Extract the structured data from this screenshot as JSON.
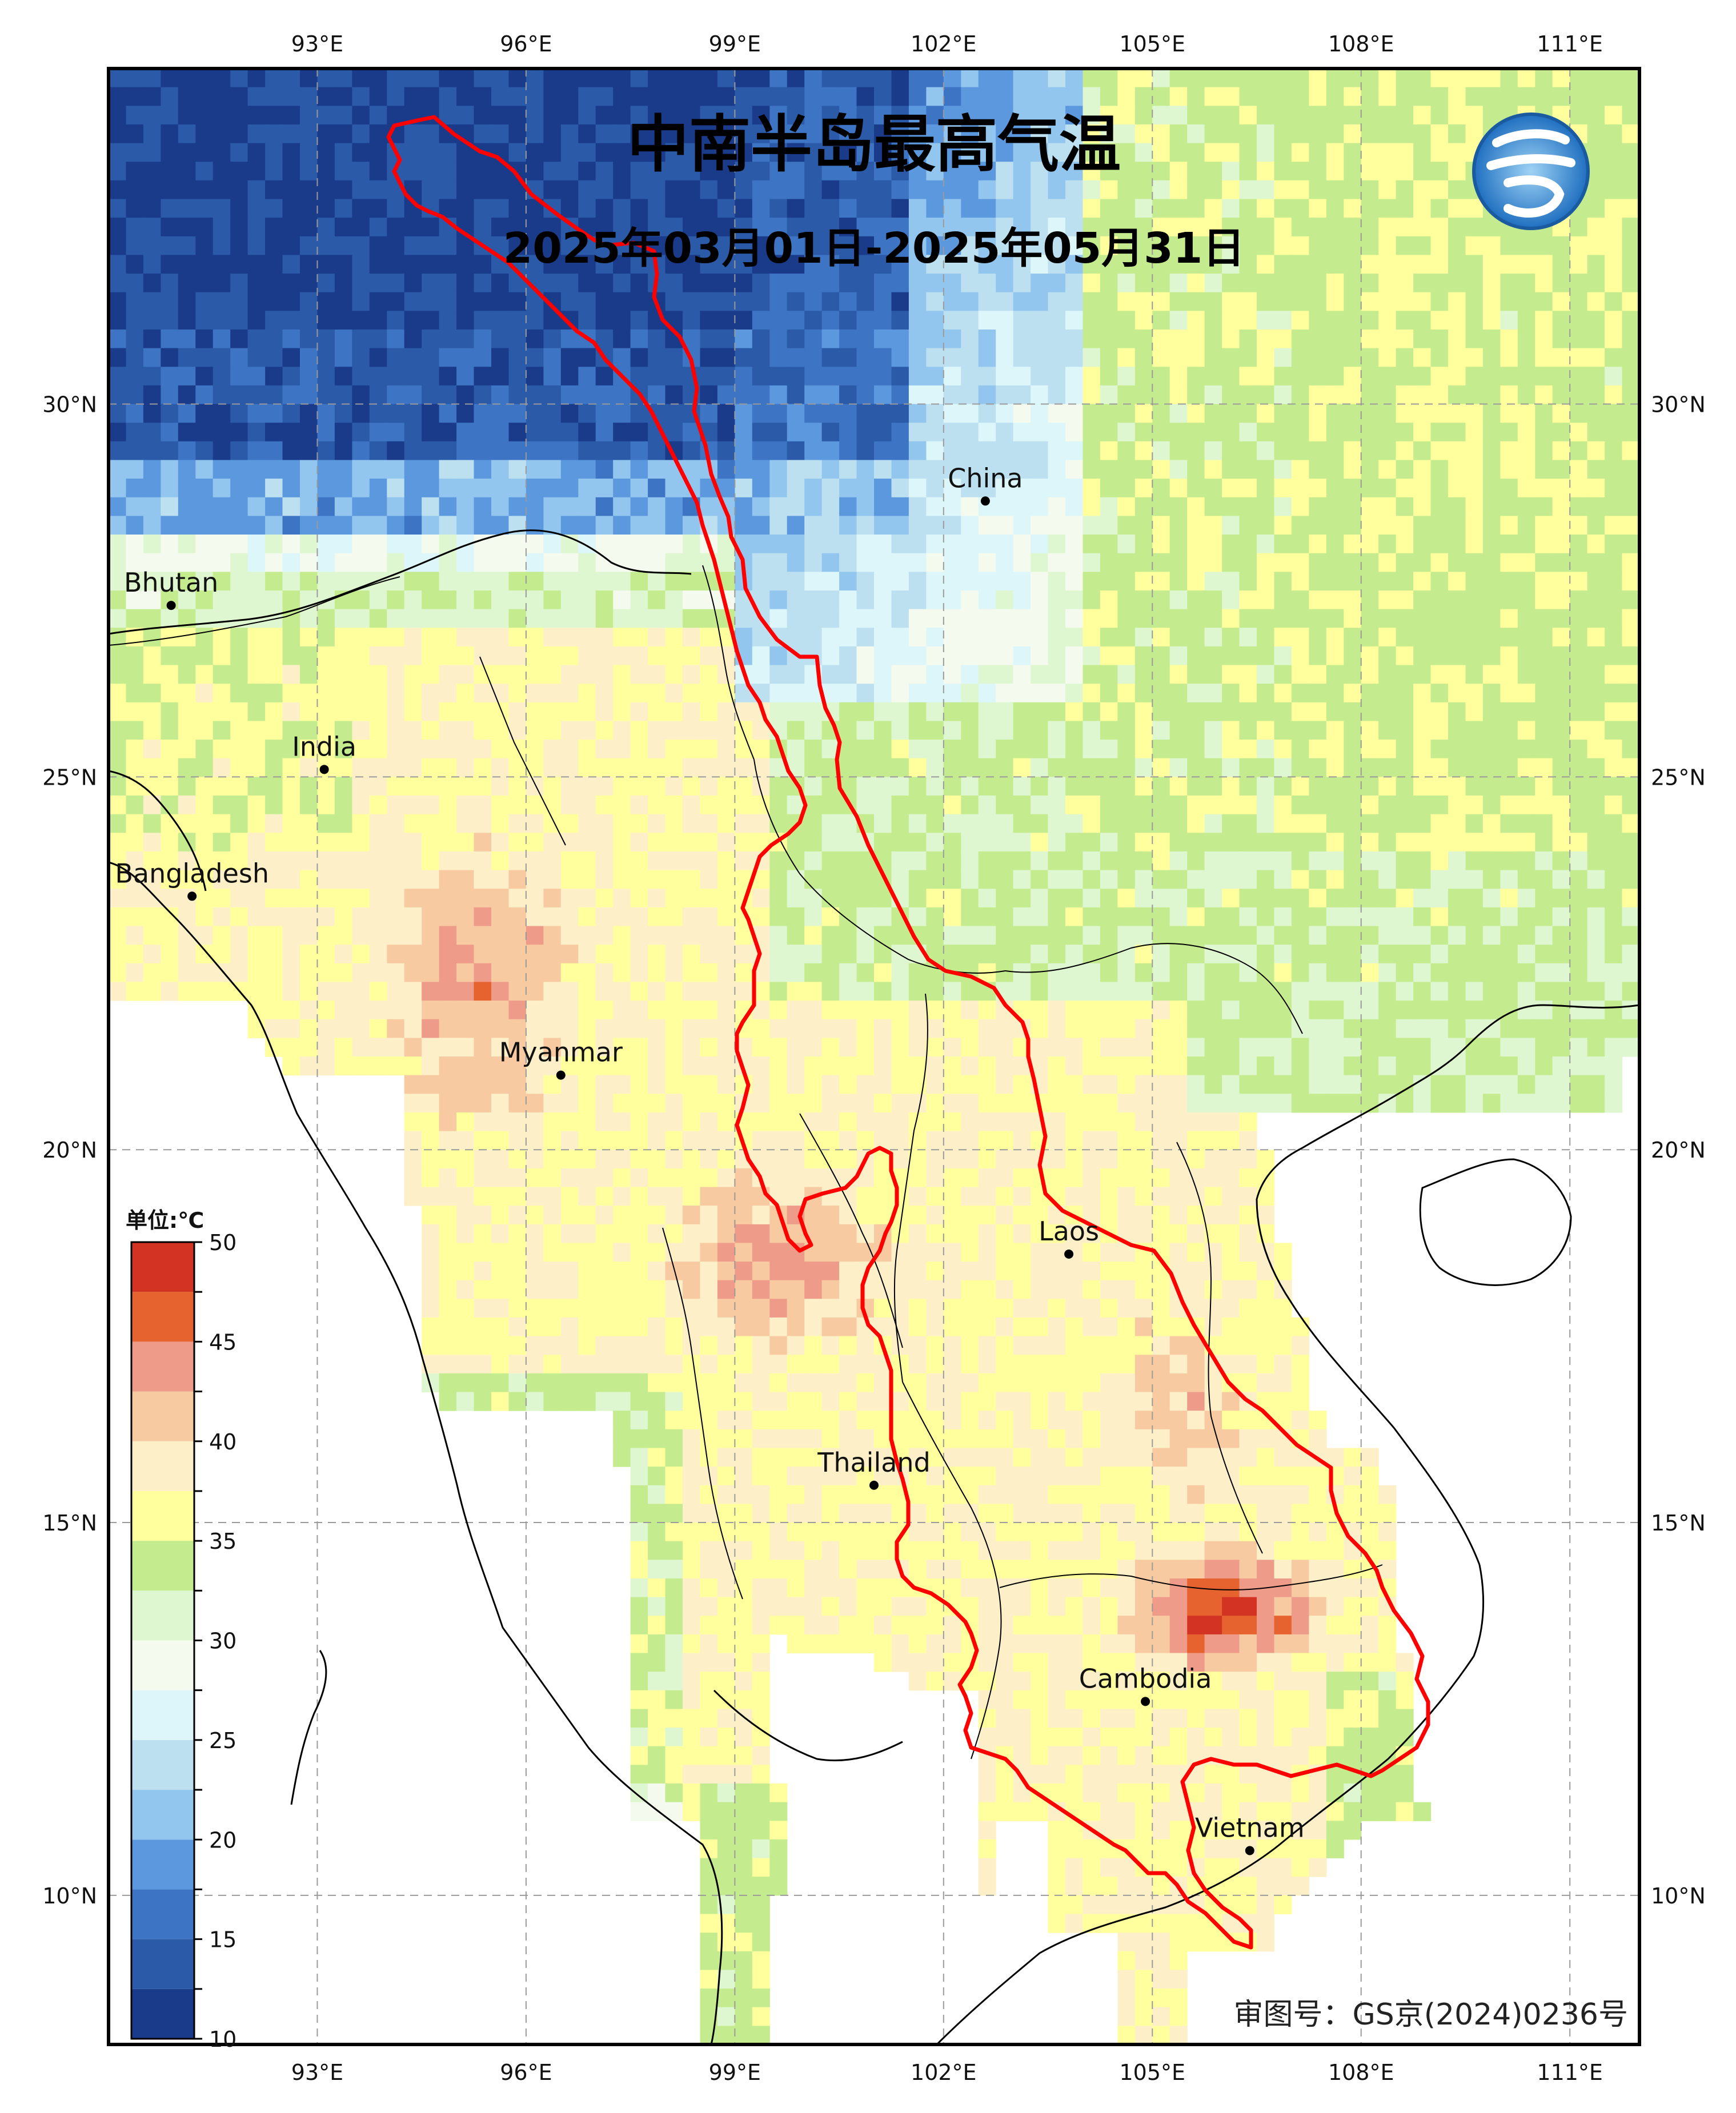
{
  "title": "中南半岛最高气温",
  "subtitle": "2025年03月01日-2025年05月31日",
  "approval_number": "审图号：GS京(2024)0236号",
  "map_extent": {
    "lon_min": 90.0,
    "lon_max": 112.0,
    "lat_min": 8.0,
    "lat_max": 34.5
  },
  "lon_ticks": [
    {
      "value": 93,
      "label": "93°E"
    },
    {
      "value": 96,
      "label": "96°E"
    },
    {
      "value": 99,
      "label": "99°E"
    },
    {
      "value": 102,
      "label": "102°E"
    },
    {
      "value": 105,
      "label": "105°E"
    },
    {
      "value": 108,
      "label": "108°E"
    },
    {
      "value": 111,
      "label": "111°E"
    }
  ],
  "lat_ticks": [
    {
      "value": 30,
      "label": "30°N"
    },
    {
      "value": 25,
      "label": "25°N"
    },
    {
      "value": 20,
      "label": "20°N"
    },
    {
      "value": 15,
      "label": "15°N"
    },
    {
      "value": 10,
      "label": "10°N"
    }
  ],
  "places": [
    {
      "name": "China",
      "lon": 102.6,
      "lat": 28.7
    },
    {
      "name": "Bhutan",
      "lon": 90.9,
      "lat": 27.3
    },
    {
      "name": "India",
      "lon": 93.1,
      "lat": 25.1
    },
    {
      "name": "Bangladesh",
      "lon": 91.2,
      "lat": 23.4
    },
    {
      "name": "Myanmar",
      "lon": 96.5,
      "lat": 21.0
    },
    {
      "name": "Laos",
      "lon": 103.8,
      "lat": 18.6
    },
    {
      "name": "Thailand",
      "lon": 101.0,
      "lat": 15.5
    },
    {
      "name": "Cambodia",
      "lon": 104.9,
      "lat": 12.6
    },
    {
      "name": "Vietnam",
      "lon": 106.4,
      "lat": 10.6
    }
  ],
  "colorbar": {
    "unit_label": "单位:℃",
    "levels": [
      10,
      12.5,
      15,
      17.5,
      20,
      22.5,
      25,
      27.5,
      30,
      32.5,
      35,
      37.5,
      40,
      42.5,
      45,
      47.5,
      50
    ],
    "colors": [
      "#1a3a8a",
      "#2a5aa8",
      "#3d74c4",
      "#5b98de",
      "#93c6ee",
      "#bde0f0",
      "#dcf6fa",
      "#f4fbee",
      "#dff7d0",
      "#c4ec8e",
      "#ffff9e",
      "#fdf0c8",
      "#f8caa2",
      "#ee9b8a",
      "#e6622f",
      "#d23322"
    ],
    "tick_labels": [
      {
        "value": 50,
        "label": "50"
      },
      {
        "value": 45,
        "label": "45"
      },
      {
        "value": 40,
        "label": "40"
      },
      {
        "value": 35,
        "label": "35"
      },
      {
        "value": 30,
        "label": "30"
      },
      {
        "value": 25,
        "label": "25"
      },
      {
        "value": 20,
        "label": "20"
      },
      {
        "value": 15,
        "label": "15"
      },
      {
        "value": 10,
        "label": "10"
      }
    ]
  },
  "colors": {
    "boundary_red": "#ff0000",
    "frame": "#000000",
    "sea": "#ffffff",
    "logo_blue": "#1f6fc0"
  }
}
